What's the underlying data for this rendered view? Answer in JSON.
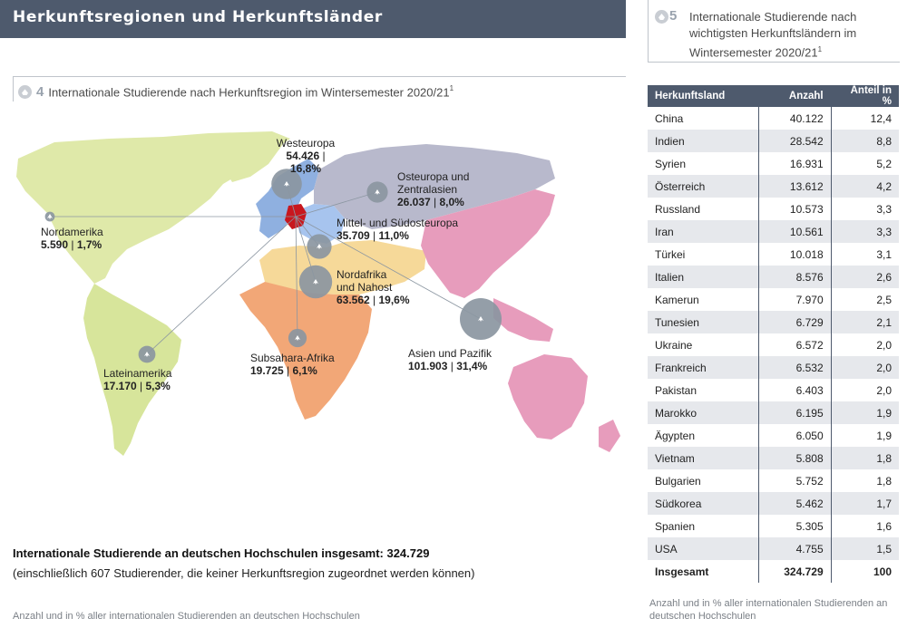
{
  "header": {
    "title": "Herkunftsregionen und Herkunftsländer"
  },
  "figure4": {
    "number": "4",
    "title": "Internationale Studierende nach Herkunftsregion im Wintersemester 2020/21",
    "footnote_mark": "1"
  },
  "figure5": {
    "number": "5",
    "title": "Internationale Studierende nach wichtigsten Herkunftsländern im Wintersemester 2020/21",
    "footnote_mark": "1"
  },
  "colors": {
    "header": "#4e5a6d",
    "westeuropa": "#8fb0e0",
    "osteuropa": "#b8b9cc",
    "mitteleuropa": "#a7c4ee",
    "nordafrika": "#f6d999",
    "subsahara": "#f2a777",
    "asien": "#e79cbc",
    "nordamerika": "#dfe9a9",
    "lateinamerika": "#d7e59b",
    "germany": "#c8171e",
    "bubble": "#8b96a1"
  },
  "chart_data": [
    {
      "type": "bubble-map",
      "title": "Internationale Studierende nach Herkunftsregion im Wintersemester 2020/21",
      "unit": "Anzahl und in % aller internationalen Studierenden an deutschen Hochschulen",
      "regions": [
        {
          "name": "Westeuropa",
          "count": "54.426",
          "percent": "16,8%",
          "value": 54426
        },
        {
          "name": "Osteuropa und Zentralasien",
          "count": "26.037",
          "percent": "8,0%",
          "value": 26037
        },
        {
          "name": "Mittel- und Südosteuropa",
          "count": "35.709",
          "percent": "11,0%",
          "value": 35709
        },
        {
          "name": "Nordamerika",
          "count": "5.590",
          "percent": "1,7%",
          "value": 5590
        },
        {
          "name": "Nordafrika und Nahost",
          "count": "63.562",
          "percent": "19,6%",
          "value": 63562
        },
        {
          "name": "Asien und Pazifik",
          "count": "101.903",
          "percent": "31,4%",
          "value": 101903
        },
        {
          "name": "Subsahara-Afrika",
          "count": "19.725",
          "percent": "6,1%",
          "value": 19725
        },
        {
          "name": "Lateinamerika",
          "count": "17.170",
          "percent": "5,3%",
          "value": 17170
        }
      ]
    },
    {
      "type": "table",
      "title": "Internationale Studierende nach wichtigsten Herkunftsländern im Wintersemester 2020/21",
      "columns": [
        "Herkunftsland",
        "Anzahl",
        "Anteil in %"
      ],
      "rows": [
        [
          "China",
          "40.122",
          "12,4"
        ],
        [
          "Indien",
          "28.542",
          "8,8"
        ],
        [
          "Syrien",
          "16.931",
          "5,2"
        ],
        [
          "Österreich",
          "13.612",
          "4,2"
        ],
        [
          "Russland",
          "10.573",
          "3,3"
        ],
        [
          "Iran",
          "10.561",
          "3,3"
        ],
        [
          "Türkei",
          "10.018",
          "3,1"
        ],
        [
          "Italien",
          "8.576",
          "2,6"
        ],
        [
          "Kamerun",
          "7.970",
          "2,5"
        ],
        [
          "Tunesien",
          "6.729",
          "2,1"
        ],
        [
          "Ukraine",
          "6.572",
          "2,0"
        ],
        [
          "Frankreich",
          "6.532",
          "2,0"
        ],
        [
          "Pakistan",
          "6.403",
          "2,0"
        ],
        [
          "Marokko",
          "6.195",
          "1,9"
        ],
        [
          "Ägypten",
          "6.050",
          "1,9"
        ],
        [
          "Vietnam",
          "5.808",
          "1,8"
        ],
        [
          "Bulgarien",
          "5.752",
          "1,8"
        ],
        [
          "Südkorea",
          "5.462",
          "1,7"
        ],
        [
          "Spanien",
          "5.305",
          "1,6"
        ],
        [
          "USA",
          "4.755",
          "1,5"
        ]
      ],
      "total": [
        "Insgesamt",
        "324.729",
        "100"
      ]
    }
  ],
  "summary": {
    "total_line": "Internationale Studierende an deutschen Hochschulen insgesamt: 324.729",
    "note": "(einschließlich 607 Studierender, die keiner Herkunftsregion zugeordnet werden können)"
  },
  "footer": {
    "left": "Anzahl und in % aller internationalen Studierenden an deutschen Hochschulen",
    "right": "Anzahl und in % aller internationalen Studierenden an deutschen Hochschulen"
  }
}
